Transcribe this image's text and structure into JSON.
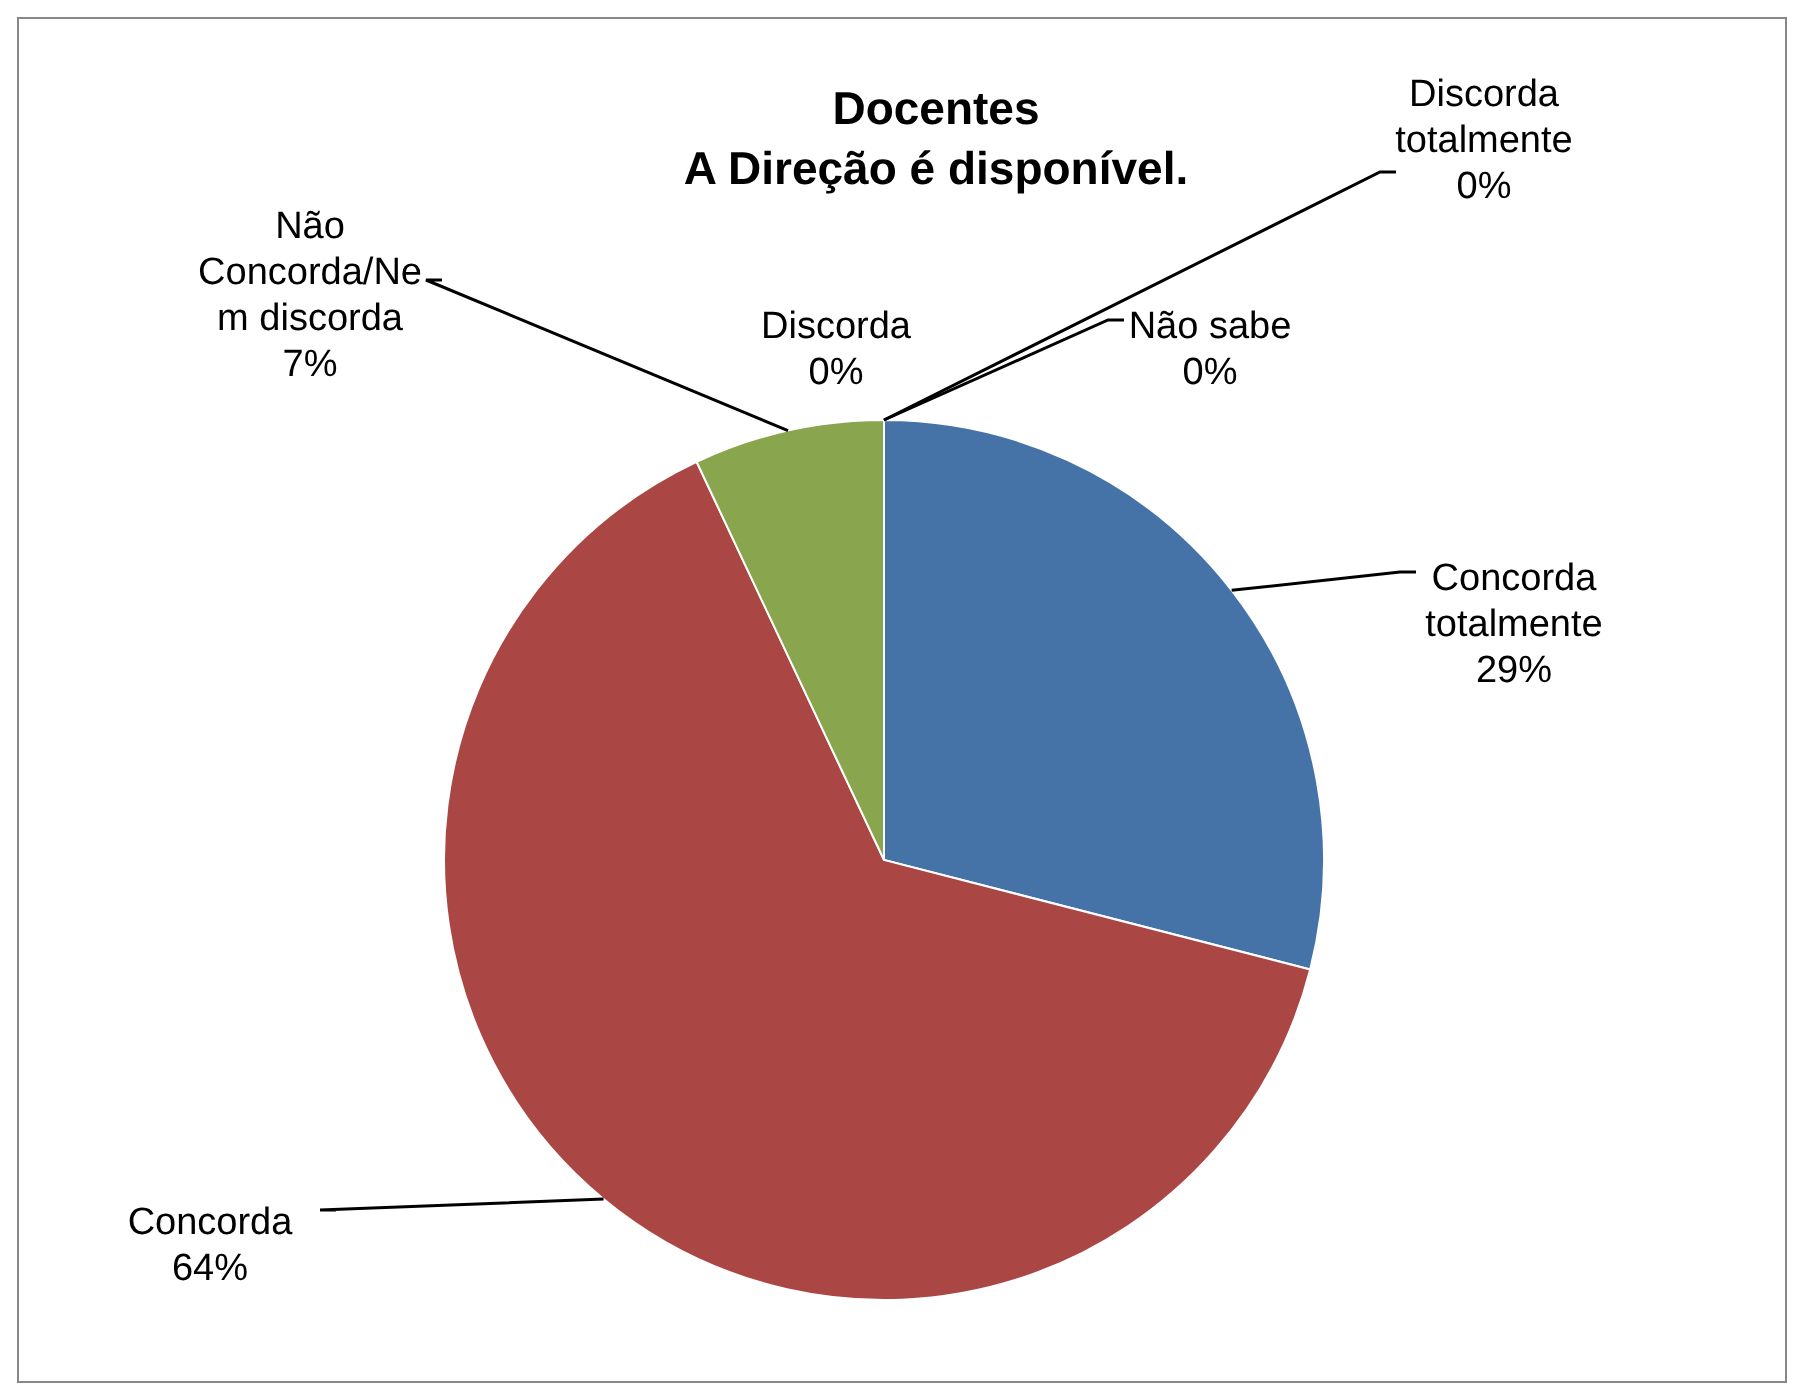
{
  "chart_data": {
    "type": "pie",
    "title": "Docentes\nA Direção é disponível.",
    "categories": [
      "Concorda totalmente",
      "Concorda",
      "Não Concorda/Nem discorda",
      "Discorda",
      "Discorda totalmente",
      "Não sabe"
    ],
    "values": [
      29,
      64,
      7,
      0,
      0,
      0
    ],
    "colors": [
      "#4572a7",
      "#aa4643",
      "#89a54e",
      "#71588f",
      "#4198af",
      "#db843d"
    ],
    "value_labels": [
      "29%",
      "64%",
      "7%",
      "0%",
      "0%",
      "0%"
    ]
  }
}
